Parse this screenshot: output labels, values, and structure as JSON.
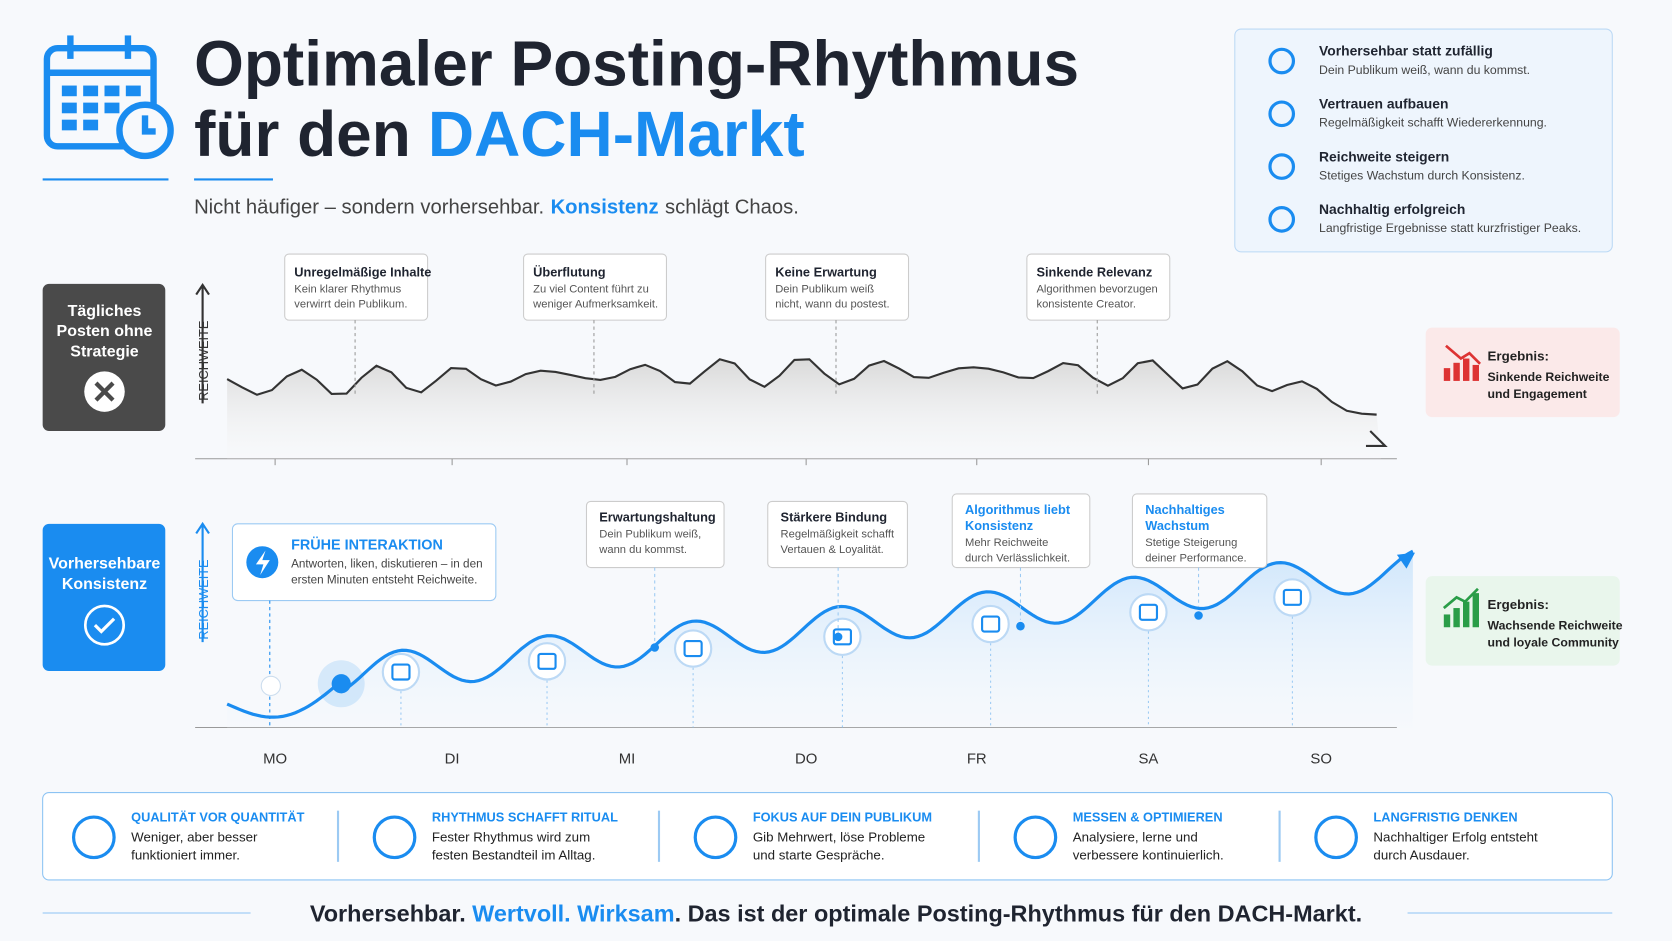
{
  "header": {
    "title_line1": "Optimaler Posting-Rhythmus",
    "title_line2": "für den",
    "title_highlight": "DACH-Markt",
    "subtitle": [
      "Nicht häufiger – sondern vorhersehbar.",
      "Konsistenz",
      "schlägt Chaos."
    ]
  },
  "benefits": [
    {
      "title": "Vorhersehbar statt zufällig",
      "text": "Dein Publikum weiß, wann du kommst."
    },
    {
      "title": "Vertrauen aufbauen",
      "text": "Regelmäßigkeit schafft Wiedererkennung."
    },
    {
      "title": "Reichweite steigern",
      "text": "Stetiges Wachstum durch Konsistenz."
    },
    {
      "title": "Nachhaltig erfolgreich",
      "text": "Langfristige Ergebnisse statt kurzfristiger Peaks."
    }
  ],
  "chaos": {
    "label": [
      "Tägliches",
      "Posten ohne",
      "Strategie"
    ],
    "axis": "REICHWEITE",
    "callouts": [
      {
        "title": "Unregelmäßige Inhalte",
        "text": [
          "Kein klarer Rhythmus",
          "verwirrt dein Publikum."
        ]
      },
      {
        "title": "Überflutung",
        "text": [
          "Zu viel Content führt zu",
          "weniger Aufmerksamkeit."
        ]
      },
      {
        "title": "Keine Erwartung",
        "text": [
          "Dein Publikum weiß",
          "nicht, wann du postest."
        ]
      },
      {
        "title": "Sinkende Relevanz",
        "text": [
          "Algorithmen bevorzugen",
          "konsistente Creator."
        ]
      }
    ],
    "result": {
      "label": "Ergebnis:",
      "text": [
        "Sinkende Reichweite",
        "und Engagement"
      ]
    }
  },
  "consistency": {
    "label": [
      "Vorhersehbare",
      "Konsistenz"
    ],
    "axis": "REICHWEITE",
    "main_callout": {
      "title": "FRÜHE INTERAKTION",
      "text": [
        "Antworten, liken, diskutieren – in den",
        "ersten Minuten entsteht Reichweite."
      ]
    },
    "callouts": [
      {
        "title": [
          "Erwartungshaltung"
        ],
        "text": [
          "Dein Publikum weiß,",
          "wann du kommst."
        ]
      },
      {
        "title": [
          "Stärkere Bindung"
        ],
        "text": [
          "Regelmäßigkeit schafft",
          "Vertauen & Loyalität."
        ]
      },
      {
        "title": [
          "Algorithmus liebt",
          "Konsistenz"
        ],
        "text": [
          "Mehr Reichweite",
          "durch Verlässlichkeit."
        ]
      },
      {
        "title": [
          "Nachhaltiges",
          "Wachstum"
        ],
        "text": [
          "Stetige Steigerung",
          "deiner Performance."
        ]
      }
    ],
    "result": {
      "label": "Ergebnis:",
      "text": [
        "Wachsende Reichweite",
        "und loyale Community"
      ]
    }
  },
  "days": [
    "MO",
    "DI",
    "MI",
    "DO",
    "FR",
    "SA",
    "SO"
  ],
  "tips": [
    {
      "title": "QUALITÄT VOR QUANTITÄT",
      "text": [
        "Weniger, aber besser",
        "funktioniert immer."
      ]
    },
    {
      "title": "RHYTHMUS SCHAFFT RITUAL",
      "text": [
        "Fester Rhythmus wird zum",
        "festen Bestandteil im Alltag."
      ]
    },
    {
      "title": "FOKUS AUF DEIN PUBLIKUM",
      "text": [
        "Gib Mehrwert, löse Probleme",
        "und starte Gespräche."
      ]
    },
    {
      "title": "MESSEN & OPTIMIEREN",
      "text": [
        "Analysiere, lerne und",
        "verbessere kontinuierlich."
      ]
    },
    {
      "title": "LANGFRISTIG DENKEN",
      "text": [
        "Nachhaltiger Erfolg entsteht",
        "durch Ausdauer."
      ]
    }
  ],
  "footer": [
    "Vorhersehbar.",
    "Wertvoll.",
    "Wirksam",
    ". Das ist der optimale Posting-Rhythmus für den DACH-Markt."
  ]
}
